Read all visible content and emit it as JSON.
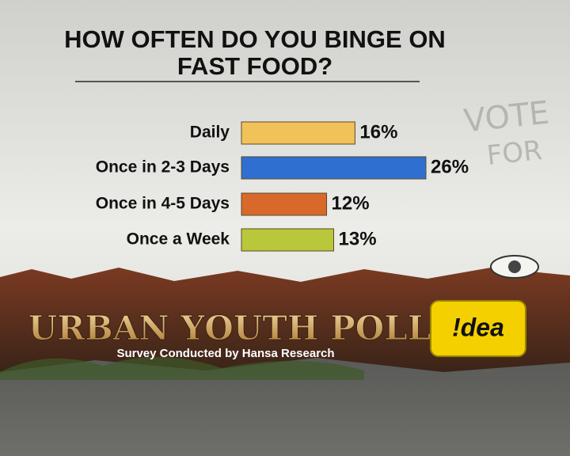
{
  "chart_data": {
    "type": "bar",
    "orientation": "horizontal",
    "title_lines": [
      "HOW OFTEN DO YOU BINGE ON",
      "FAST FOOD?"
    ],
    "categories": [
      "Daily",
      "Once in 2-3 Days",
      "Once in 4-5 Days",
      "Once  a Week"
    ],
    "values": [
      16,
      26,
      12,
      13
    ],
    "value_labels": [
      "16%",
      "26%",
      "12%",
      "13%"
    ],
    "colors": [
      "#f2c25a",
      "#2f6fd0",
      "#d8692a",
      "#b8c83a"
    ],
    "graffiti": [
      "VOTE",
      "FOR"
    ],
    "footer_title": "URBAN YOUTH POLL",
    "footer_subtitle": "Survey Conducted by Hansa Research",
    "logo": "!dea"
  }
}
